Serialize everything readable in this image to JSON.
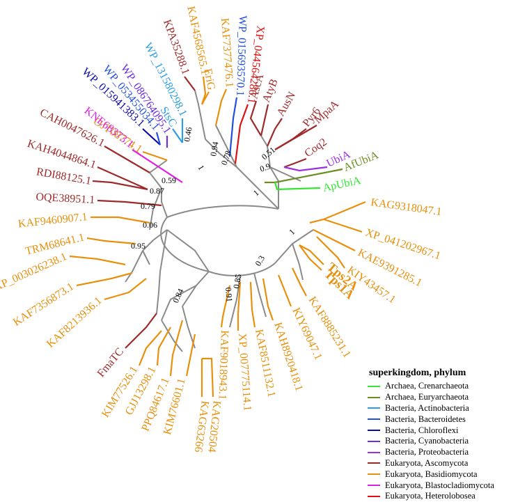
{
  "legend": {
    "title": "superkingdom, phylum",
    "items": [
      {
        "label": "Archaea, Crenarchaeota",
        "color": "#32e632"
      },
      {
        "label": "Archaea, Euryarchaeota",
        "color": "#6b8e23"
      },
      {
        "label": "Bacteria, Actinobacteria",
        "color": "#2a9de4"
      },
      {
        "label": "Bacteria, Bacteroidetes",
        "color": "#1f4fe0"
      },
      {
        "label": "Bacteria, Chloroflexi",
        "color": "#0a0aa8"
      },
      {
        "label": "Bacteria, Cyanobacteria",
        "color": "#6a2de0"
      },
      {
        "label": "Bacteria, Proteobacteria",
        "color": "#9b30e0"
      },
      {
        "label": "Eukaryota, Ascomycota",
        "color": "#9e2a2a"
      },
      {
        "label": "Eukaryota, Basidiomycota",
        "color": "#e8900c"
      },
      {
        "label": "Eukaryota, Blastocladiomycota",
        "color": "#e020e0"
      },
      {
        "label": "Eukaryota, Heterolobosea",
        "color": "#e01010"
      }
    ]
  },
  "leaves": [
    {
      "label": "AfUbiA",
      "color": "#6b8e23"
    },
    {
      "label": "ApUbiA",
      "color": "#32e632"
    },
    {
      "label": "KAG9318047.1",
      "color": "#e8900c"
    },
    {
      "label": "XP_041202967.1",
      "color": "#e8900c"
    },
    {
      "label": "KAE9391285.1",
      "color": "#e8900c"
    },
    {
      "label": "KIY43457.1",
      "color": "#e8900c"
    },
    {
      "label": "Tps2A",
      "color": "#e8900c",
      "bold": true
    },
    {
      "label": "Tps1A",
      "color": "#e8900c",
      "bold": true
    },
    {
      "label": "KAF8885231.1",
      "color": "#e8900c"
    },
    {
      "label": "KIY69047.1",
      "color": "#e8900c"
    },
    {
      "label": "KAH8920418.1",
      "color": "#e8900c"
    },
    {
      "label": "KAF8511132.1",
      "color": "#e8900c"
    },
    {
      "label": "XP_007775114.1",
      "color": "#e8900c"
    },
    {
      "label": "KAF9018943.1",
      "color": "#e8900c"
    },
    {
      "label": "KAG2050447.1",
      "color": "#e8900c"
    },
    {
      "label": "KAG6326674.1",
      "color": "#e8900c"
    },
    {
      "label": "KIM76601.1",
      "color": "#e8900c"
    },
    {
      "label": "PPQ84617.1",
      "color": "#e8900c"
    },
    {
      "label": "GJJ13298.1",
      "color": "#e8900c"
    },
    {
      "label": "KIM77526.1",
      "color": "#e8900c"
    },
    {
      "label": "FmaTC",
      "color": "#9e2a2a"
    },
    {
      "label": "KAF8213936.1",
      "color": "#e8900c"
    },
    {
      "label": "KAF7356873.1",
      "color": "#e8900c"
    },
    {
      "label": "XP_003026238.1",
      "color": "#e8900c"
    },
    {
      "label": "TRM68641.1",
      "color": "#e8900c"
    },
    {
      "label": "KAF9460907.1",
      "color": "#e8900c"
    },
    {
      "label": "OQE38951.1",
      "color": "#9e2a2a"
    },
    {
      "label": "RDI88125.1",
      "color": "#9e2a2a"
    },
    {
      "label": "KAH4044864.1",
      "color": "#9e2a2a"
    },
    {
      "label": "CAH0047626.1",
      "color": "#9e2a2a"
    },
    {
      "label": "OJT08774.1",
      "color": "#e8900c"
    },
    {
      "label": "KNE68373.1",
      "color": "#e020e0"
    },
    {
      "label": "WP_015941383.1",
      "color": "#0a0aa8"
    },
    {
      "label": "WP_053455034.1",
      "color": "#1f4fe0"
    },
    {
      "label": "WP_086764095.1",
      "color": "#6a2de0"
    },
    {
      "label": "StsC",
      "color": "#2a9de4"
    },
    {
      "label": "WP_131580298.1",
      "color": "#2a9de4"
    },
    {
      "label": "KPA35288.1",
      "color": "#9e2a2a"
    },
    {
      "label": "KAF4568565.1",
      "color": "#e8900c"
    },
    {
      "label": "EriG",
      "color": "#e8900c"
    },
    {
      "label": "KAF7377476.1",
      "color": "#e8900c"
    },
    {
      "label": "WP_015693570.1",
      "color": "#1f4fe0"
    },
    {
      "label": "XP_044564286.1",
      "color": "#e01010"
    },
    {
      "label": "AscA",
      "color": "#9e2a2a"
    },
    {
      "label": "AtyB",
      "color": "#9e2a2a"
    },
    {
      "label": "AusN",
      "color": "#9e2a2a"
    },
    {
      "label": "Pyr6",
      "color": "#9e2a2a"
    },
    {
      "label": "MpaA",
      "color": "#9e2a2a"
    },
    {
      "label": "Coq2",
      "color": "#9e2a2a"
    },
    {
      "label": "UbiA",
      "color": "#9b30e0"
    }
  ],
  "support_values": [
    "0.94",
    "0.46",
    "0.78",
    "0.51",
    "0.9",
    "1",
    "1",
    "0.59",
    "0.87",
    "0.79",
    "0.06",
    "0.95",
    "1",
    "0.3",
    "0.85",
    "0.91",
    "0.84"
  ]
}
